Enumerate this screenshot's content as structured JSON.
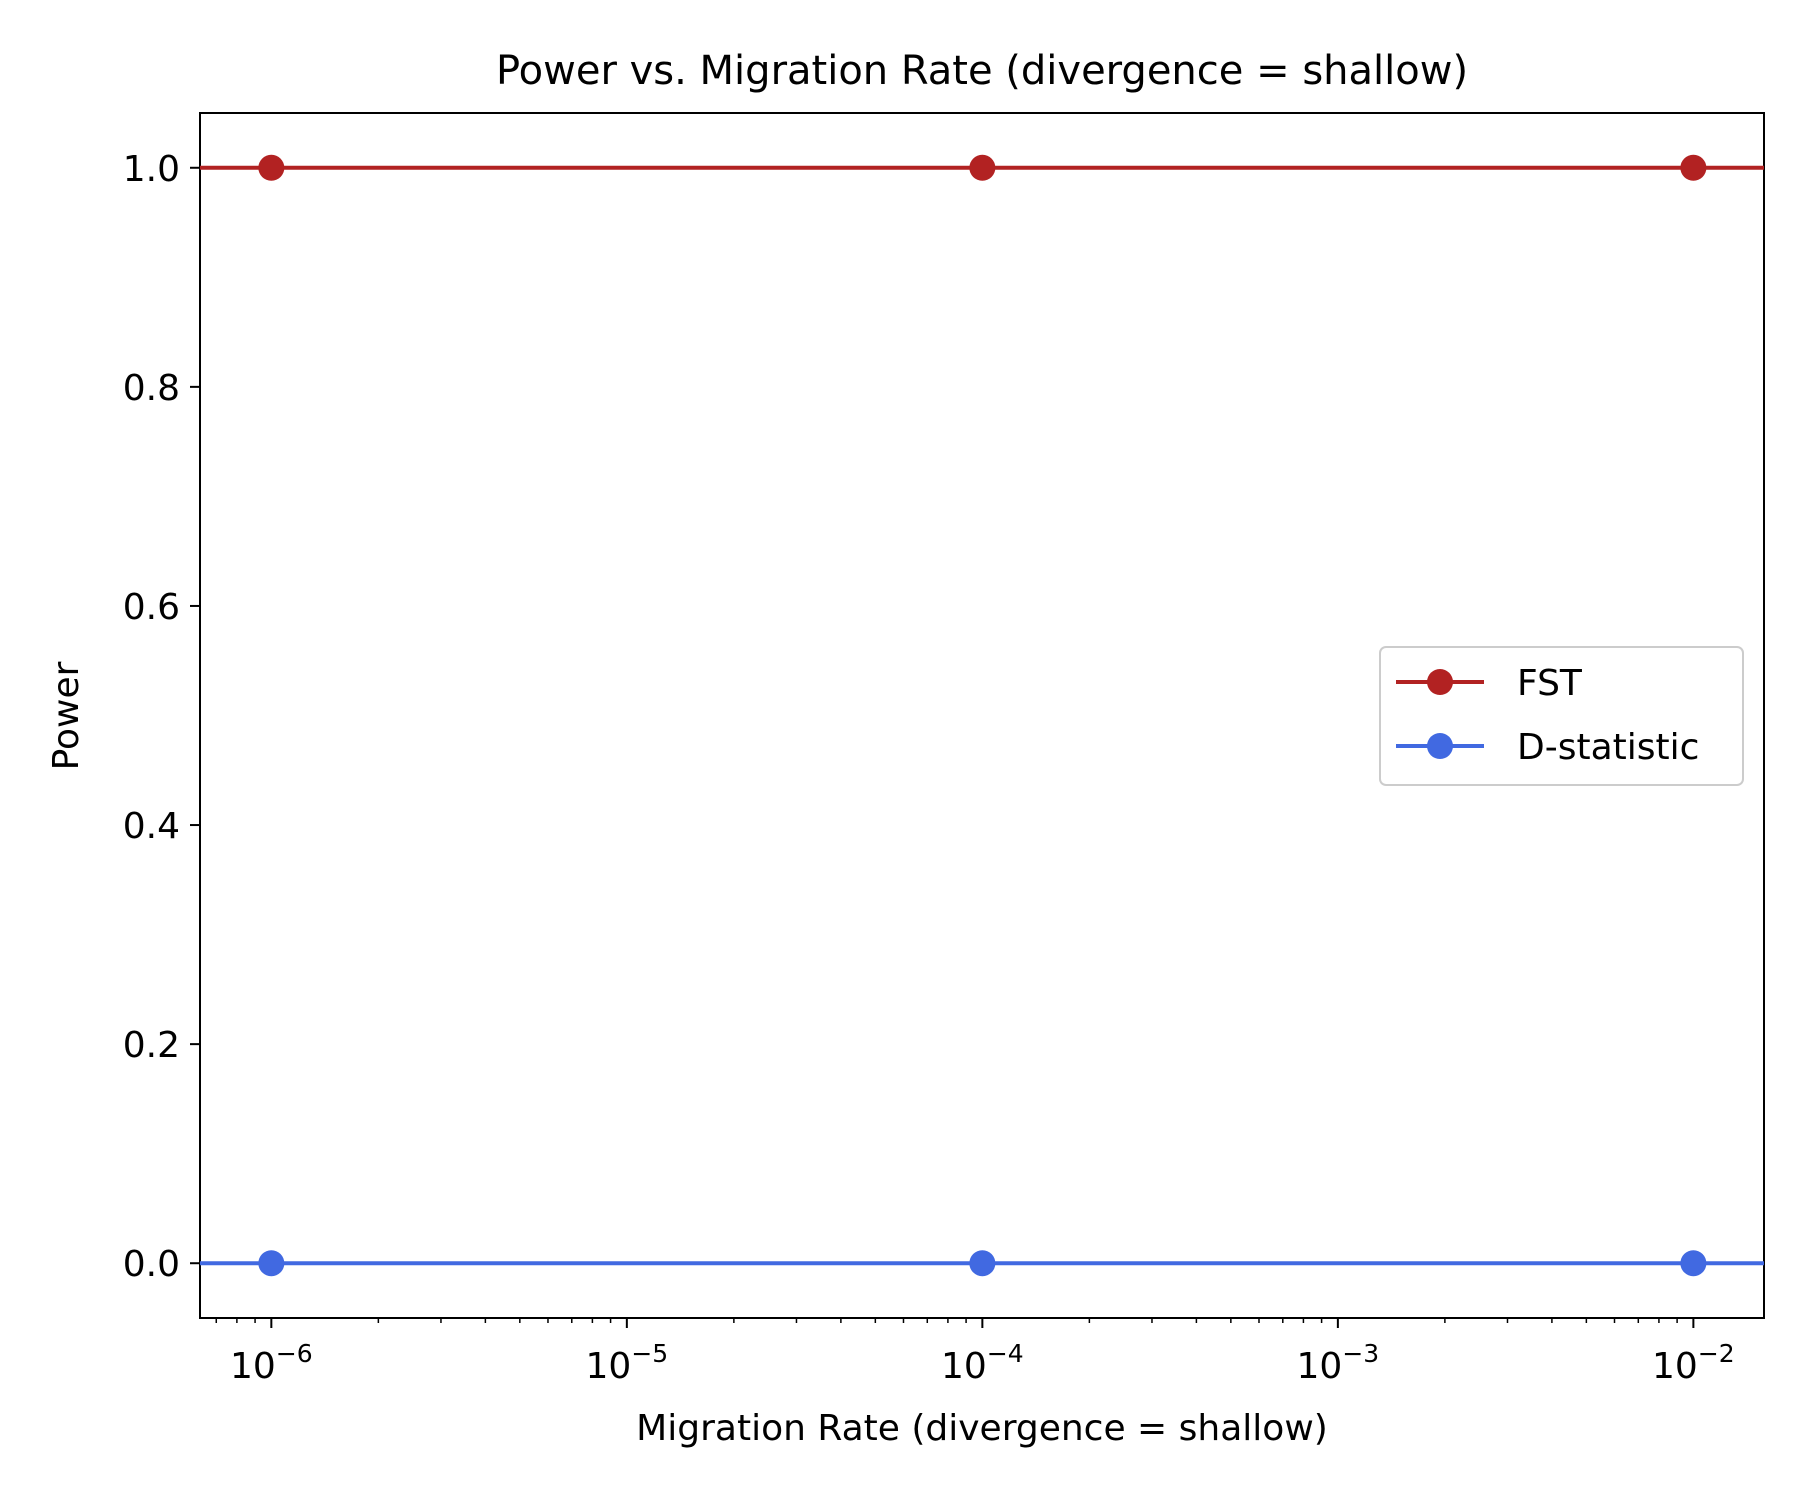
{
  "chart_data": {
    "type": "line",
    "title": "Power vs. Migration Rate (divergence = shallow)",
    "xlabel": "Migration Rate (divergence = shallow)",
    "ylabel": "Power",
    "x_scale": "log",
    "x": [
      1e-06,
      0.0001,
      0.01
    ],
    "xlim": [
      6.3e-07,
      0.0158
    ],
    "ylim": [
      -0.05,
      1.05
    ],
    "x_ticks": [
      {
        "value": 1e-06,
        "base": "10",
        "exp": "−6"
      },
      {
        "value": 1e-05,
        "base": "10",
        "exp": "−5"
      },
      {
        "value": 0.0001,
        "base": "10",
        "exp": "−4"
      },
      {
        "value": 0.001,
        "base": "10",
        "exp": "−3"
      },
      {
        "value": 0.01,
        "base": "10",
        "exp": "−2"
      }
    ],
    "y_ticks": [
      {
        "value": 0.0,
        "label": "0.0"
      },
      {
        "value": 0.2,
        "label": "0.2"
      },
      {
        "value": 0.4,
        "label": "0.4"
      },
      {
        "value": 0.6,
        "label": "0.6"
      },
      {
        "value": 0.8,
        "label": "0.8"
      },
      {
        "value": 1.0,
        "label": "1.0"
      }
    ],
    "grid": false,
    "legend_position": "center-right",
    "series": [
      {
        "name": "FST",
        "values": [
          1.0,
          1.0,
          1.0
        ],
        "color": "#b22222"
      },
      {
        "name": "D-statistic",
        "values": [
          0.0,
          0.0,
          0.0
        ],
        "color": "#4169e1"
      }
    ]
  }
}
